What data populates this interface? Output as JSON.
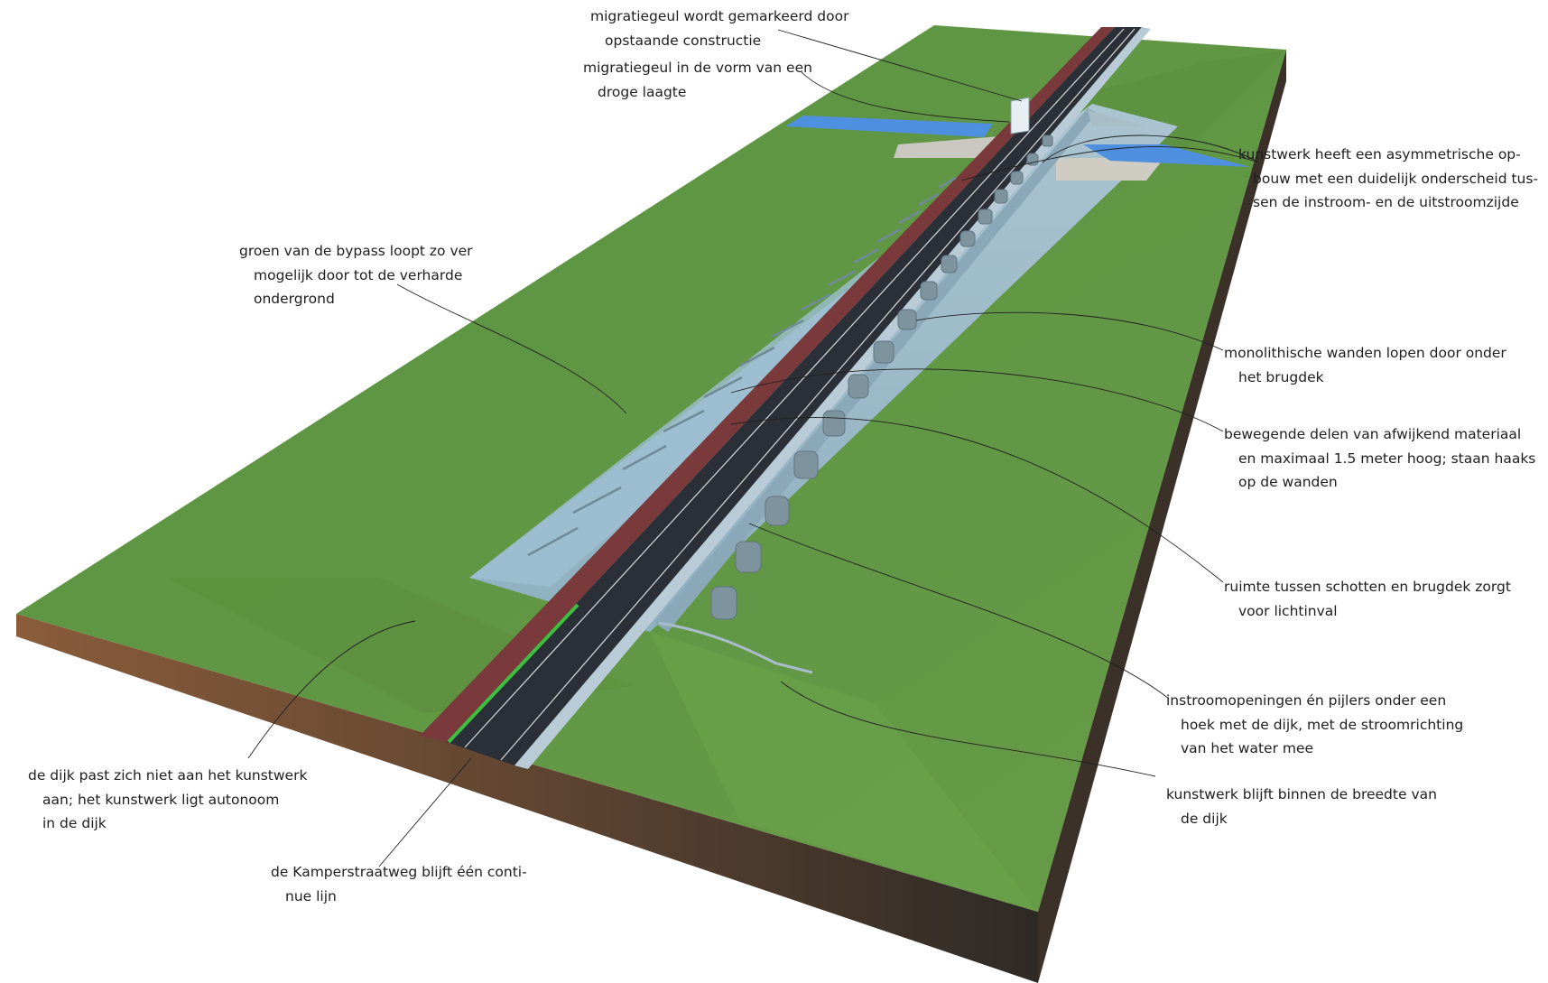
{
  "annotations": {
    "migration_marked": [
      "migratiegeul wordt gemarkeerd door",
      "opstaande constructie"
    ],
    "migration_dry": [
      "migratiegeul in de vorm van een",
      "droge laagte"
    ],
    "asymmetric": [
      "kunstwerk heeft een asymmetrische op-",
      "bouw met een duidelijk onderscheid tus-",
      "sen de instroom- en de uitstroomzijde"
    ],
    "bypass_green": [
      "groen van de bypass loopt zo ver",
      "mogelijk door tot de verharde",
      "ondergrond"
    ],
    "monolithic_walls": [
      "monolithische wanden lopen door onder",
      "het brugdek"
    ],
    "moving_parts": [
      "bewegende delen van afwijkend materiaal",
      "en maximaal 1.5 meter hoog; staan haaks",
      "op de wanden"
    ],
    "light_gap": [
      "ruimte tussen schotten en brugdek zorgt",
      "voor lichtinval"
    ],
    "inflow_openings": [
      "instroomopeningen én pijlers onder een",
      "hoek met de dijk, met de stroomrichting",
      "van het water mee"
    ],
    "within_width": [
      "kunstwerk blijft binnen de breedte van",
      "de dijk"
    ],
    "dike_autonomous": [
      "de dijk past zich niet aan het kunstwerk",
      "aan; het kunstwerk ligt autonoom",
      "in de dijk"
    ],
    "kamperstraatweg": [
      "de Kamperstraatweg blijft één conti-",
      "nue lijn"
    ]
  },
  "colors": {
    "grass": "#5f9440",
    "grass_dark": "#4f7e34",
    "soil_front": "#6b4a30",
    "soil_side": "#3a2e24",
    "road": "#2b3038",
    "cycle_path": "#7a3a3c",
    "concrete": "#9fb8c6",
    "water": "#4f8fe0",
    "leader_line": "#202020"
  }
}
